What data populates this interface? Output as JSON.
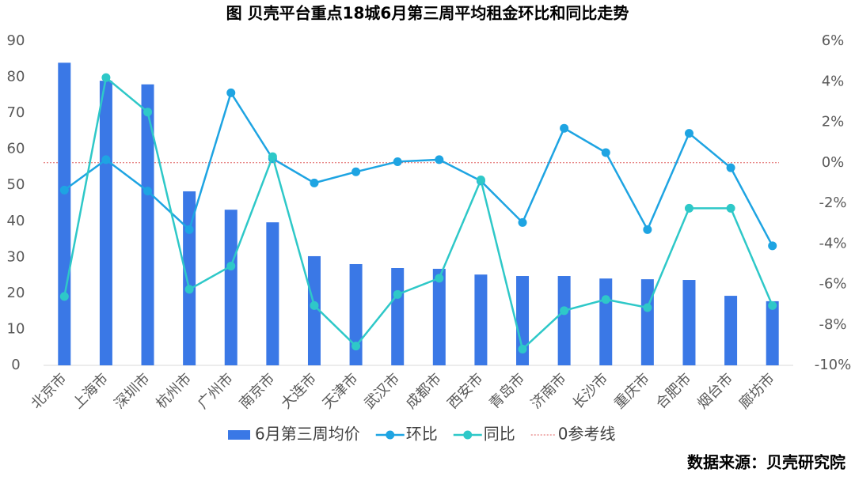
{
  "chart_data": {
    "type": "bar_line",
    "title": "图 贝壳平台重点18城6月第三周平均租金环比和同比走势",
    "categories": [
      "北京市",
      "上海市",
      "深圳市",
      "杭州市",
      "广州市",
      "南京市",
      "大连市",
      "天津市",
      "武汉市",
      "成都市",
      "西安市",
      "青岛市",
      "济南市",
      "长沙市",
      "重庆市",
      "合肥市",
      "烟台市",
      "廊坊市"
    ],
    "series": [
      {
        "name": "6月第三周均价",
        "type": "bar",
        "color": "#3a78e6",
        "axis": "y",
        "values": [
          84,
          79,
          78,
          48.3,
          43.2,
          39.7,
          30.3,
          28.1,
          27,
          26.8,
          25.2,
          24.8,
          24.8,
          24.1,
          23.9,
          23.7,
          19.3,
          17.8
        ]
      },
      {
        "name": "环比",
        "type": "line",
        "color": "#1ea4e2",
        "axis": "y2",
        "values": [
          -1.35,
          0.15,
          -1.4,
          -3.3,
          3.45,
          0.2,
          -1.0,
          -0.45,
          0.05,
          0.15,
          -0.9,
          -2.95,
          1.7,
          0.5,
          -3.3,
          1.45,
          -0.25,
          -4.1
        ]
      },
      {
        "name": "同比",
        "type": "line",
        "color": "#2ec8c8",
        "axis": "y2",
        "values": [
          -6.6,
          4.2,
          2.5,
          -6.25,
          -5.1,
          0.3,
          -7.05,
          -9.05,
          -6.5,
          -5.7,
          -0.85,
          -9.2,
          -7.3,
          -6.75,
          -7.15,
          -2.25,
          -2.25,
          -7.05
        ]
      }
    ],
    "reference_line": {
      "name": "0参考线",
      "value": 0,
      "axis": "y2",
      "color": "#e06060"
    },
    "ylim": [
      0,
      90
    ],
    "yticks": [
      0,
      10,
      20,
      30,
      40,
      50,
      60,
      70,
      80,
      90
    ],
    "y2lim": [
      -10,
      6
    ],
    "y2ticks": [
      {
        "value": -10,
        "label": "-10%"
      },
      {
        "value": -8,
        "label": "-8%"
      },
      {
        "value": -6,
        "label": "-6%"
      },
      {
        "value": -4,
        "label": "-4%"
      },
      {
        "value": -2,
        "label": "-2%"
      },
      {
        "value": 0,
        "label": "0%"
      },
      {
        "value": 2,
        "label": "2%"
      },
      {
        "value": 4,
        "label": "4%"
      },
      {
        "value": 6,
        "label": "6%"
      }
    ],
    "source": "数据来源：贝壳研究院"
  }
}
